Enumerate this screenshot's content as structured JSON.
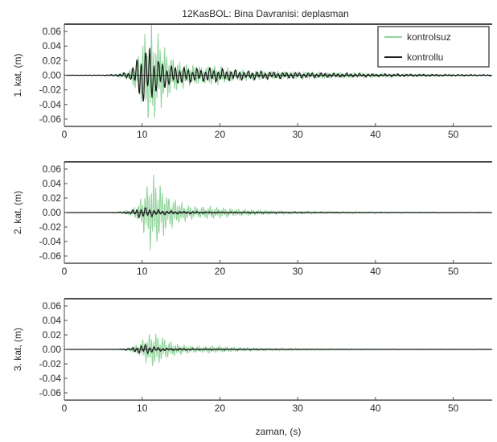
{
  "chart_data": {
    "type": "line",
    "title": "12KasBOL: Bina Davranisi: deplasman",
    "xlabel": "zaman, (s)",
    "xlim": [
      0,
      55
    ],
    "xticks": [
      "0",
      "10",
      "20",
      "30",
      "40",
      "50"
    ],
    "yticks": [
      "0.06",
      "0.04",
      "0.02",
      "0.00",
      "-0.02",
      "-0.04",
      "-0.06"
    ],
    "legend": {
      "placement": "top-right",
      "entries": [
        "kontrolsuz",
        "kontrollu"
      ]
    },
    "colors": {
      "kontrolsuz": "#8fd49a",
      "kontrollu": "#1a1a1a"
    },
    "panels": [
      {
        "ylabel": "1. kat, (m)",
        "ylim": [
          -0.07,
          0.07
        ],
        "envelope_kontrolsuz": {
          "x": [
            0,
            5,
            7,
            8.5,
            9.5,
            10.2,
            10.8,
            11.3,
            11.8,
            12.5,
            13.5,
            15,
            17,
            19,
            22,
            26,
            30,
            35,
            40,
            45,
            50,
            55
          ],
          "amp": [
            0,
            0.0005,
            0.002,
            0.008,
            0.03,
            0.052,
            0.063,
            0.068,
            0.058,
            0.045,
            0.03,
            0.018,
            0.013,
            0.014,
            0.008,
            0.006,
            0.005,
            0.004,
            0.003,
            0.002,
            0.0015,
            0.001
          ]
        },
        "envelope_kontrollu": {
          "x": [
            0,
            5,
            7,
            8.5,
            9.5,
            10.2,
            10.8,
            11.5,
            12.5,
            13.5,
            15,
            17,
            19,
            22,
            26,
            30,
            35,
            40,
            45,
            50,
            55
          ],
          "amp": [
            0,
            0.0004,
            0.0015,
            0.006,
            0.028,
            0.044,
            0.042,
            0.03,
            0.02,
            0.015,
            0.012,
            0.009,
            0.01,
            0.007,
            0.005,
            0.004,
            0.003,
            0.002,
            0.0015,
            0.001,
            0.0008
          ]
        }
      },
      {
        "ylabel": "2. kat, (m)",
        "ylim": [
          -0.07,
          0.07
        ],
        "envelope_kontrolsuz": {
          "x": [
            0,
            5,
            7,
            8.5,
            9.5,
            10.3,
            11,
            11.5,
            12,
            13,
            14,
            15.5,
            17,
            19,
            22,
            26,
            30,
            35,
            40,
            45,
            50,
            55
          ],
          "amp": [
            0,
            0.0003,
            0.001,
            0.004,
            0.012,
            0.03,
            0.048,
            0.055,
            0.047,
            0.03,
            0.02,
            0.012,
            0.008,
            0.009,
            0.005,
            0.003,
            0.002,
            0.0015,
            0.001,
            0.0008,
            0.0006,
            0.0005
          ]
        },
        "envelope_kontrollu": {
          "x": [
            0,
            5,
            7,
            8.5,
            9.5,
            10.3,
            11,
            12,
            13,
            15,
            17,
            20,
            25,
            30,
            40,
            55
          ],
          "amp": [
            0,
            0.0002,
            0.0006,
            0.002,
            0.006,
            0.008,
            0.006,
            0.004,
            0.003,
            0.002,
            0.0015,
            0.001,
            0.0008,
            0.0006,
            0.0004,
            0.0003
          ]
        }
      },
      {
        "ylabel": "3. kat, (m)",
        "ylim": [
          -0.07,
          0.07
        ],
        "envelope_kontrolsuz": {
          "x": [
            0,
            5,
            7,
            8.5,
            9.5,
            10.3,
            11,
            11.5,
            12,
            13,
            14,
            15.5,
            17,
            19,
            22,
            26,
            30,
            35,
            40,
            45,
            50,
            55
          ],
          "amp": [
            0,
            0.0002,
            0.0008,
            0.003,
            0.008,
            0.016,
            0.024,
            0.026,
            0.022,
            0.015,
            0.01,
            0.006,
            0.004,
            0.005,
            0.003,
            0.002,
            0.0015,
            0.001,
            0.0008,
            0.0006,
            0.0005,
            0.0004
          ]
        },
        "envelope_kontrollu": {
          "x": [
            0,
            5,
            7,
            8.5,
            9.5,
            10.3,
            11,
            12,
            13,
            15,
            17,
            20,
            25,
            30,
            40,
            55
          ],
          "amp": [
            0,
            0.0001,
            0.0004,
            0.0015,
            0.005,
            0.007,
            0.005,
            0.003,
            0.002,
            0.0015,
            0.001,
            0.0008,
            0.0006,
            0.0004,
            0.0003,
            0.0002
          ]
        }
      }
    ]
  }
}
